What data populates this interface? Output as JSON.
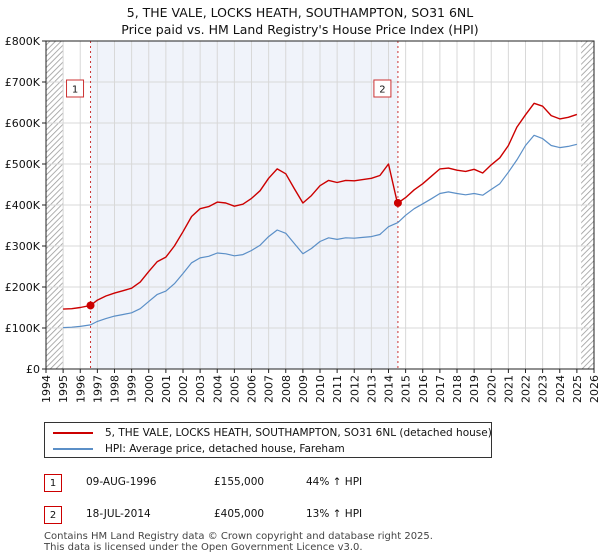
{
  "title_line1": "5, THE VALE, LOCKS HEATH, SOUTHAMPTON, SO31 6NL",
  "title_line2": "Price paid vs. HM Land Registry's House Price Index (HPI)",
  "colors": {
    "property_line": "#cc0000",
    "hpi_line": "#5b8fc7",
    "shade": "#dde5f5",
    "hatch": "#999999",
    "grid": "#d8d8d8",
    "marker": "#cc0000",
    "vline": "#cc3333"
  },
  "chart_data": {
    "type": "line",
    "xlim": [
      1994,
      2026
    ],
    "ylim": [
      0,
      800000
    ],
    "x_ticks": [
      "1994",
      "1995",
      "1996",
      "1997",
      "1998",
      "1999",
      "2000",
      "2001",
      "2002",
      "2003",
      "2004",
      "2005",
      "2006",
      "2007",
      "2008",
      "2009",
      "2010",
      "2011",
      "2012",
      "2013",
      "2014",
      "2015",
      "2016",
      "2017",
      "2018",
      "2019",
      "2020",
      "2021",
      "2022",
      "2023",
      "2024",
      "2025",
      "2026"
    ],
    "y_ticks": [
      {
        "value": 0,
        "label": "£0"
      },
      {
        "value": 100000,
        "label": "£100K"
      },
      {
        "value": 200000,
        "label": "£200K"
      },
      {
        "value": 300000,
        "label": "£300K"
      },
      {
        "value": 400000,
        "label": "£400K"
      },
      {
        "value": 500000,
        "label": "£500K"
      },
      {
        "value": 600000,
        "label": "£600K"
      },
      {
        "value": 700000,
        "label": "£700K"
      },
      {
        "value": 800000,
        "label": "£800K"
      }
    ],
    "data_range": [
      1995.0,
      2025.25
    ],
    "series": [
      {
        "name": "5, THE VALE, LOCKS HEATH, SOUTHAMPTON, SO31 6NL (detached house)",
        "color_key": "property_line",
        "x": [
          1995.0,
          1995.5,
          1996.0,
          1996.6,
          1997.0,
          1997.5,
          1998.0,
          1998.5,
          1999.0,
          1999.5,
          2000.0,
          2000.5,
          2001.0,
          2001.5,
          2002.0,
          2002.5,
          2003.0,
          2003.5,
          2004.0,
          2004.5,
          2005.0,
          2005.5,
          2006.0,
          2006.5,
          2007.0,
          2007.5,
          2008.0,
          2008.5,
          2009.0,
          2009.5,
          2010.0,
          2010.5,
          2011.0,
          2011.5,
          2012.0,
          2012.5,
          2013.0,
          2013.5,
          2014.0,
          2014.5,
          2014.55,
          2015.0,
          2015.5,
          2016.0,
          2016.5,
          2017.0,
          2017.5,
          2018.0,
          2018.5,
          2019.0,
          2019.5,
          2020.0,
          2020.5,
          2021.0,
          2021.5,
          2022.0,
          2022.5,
          2023.0,
          2023.5,
          2024.0,
          2024.5,
          2025.0
        ],
        "y": [
          146000,
          147000,
          150000,
          155000,
          168000,
          178000,
          185000,
          191000,
          197000,
          212000,
          238000,
          262000,
          273000,
          300000,
          335000,
          372000,
          391000,
          396000,
          407000,
          405000,
          397000,
          402000,
          416000,
          435000,
          465000,
          488000,
          476000,
          440000,
          405000,
          423000,
          447000,
          460000,
          455000,
          460000,
          459000,
          462000,
          465000,
          472000,
          500000,
          408000,
          405000,
          418000,
          437000,
          452000,
          470000,
          488000,
          490000,
          485000,
          482000,
          487000,
          478000,
          498000,
          515000,
          545000,
          590000,
          620000,
          648000,
          641000,
          618000,
          610000,
          614000,
          621000
        ]
      },
      {
        "name": "HPI: Average price, detached house, Fareham",
        "color_key": "hpi_line",
        "x": [
          1995.0,
          1995.5,
          1996.0,
          1996.6,
          1997.0,
          1997.5,
          1998.0,
          1998.5,
          1999.0,
          1999.5,
          2000.0,
          2000.5,
          2001.0,
          2001.5,
          2002.0,
          2002.5,
          2003.0,
          2003.5,
          2004.0,
          2004.5,
          2005.0,
          2005.5,
          2006.0,
          2006.5,
          2007.0,
          2007.5,
          2008.0,
          2008.5,
          2009.0,
          2009.5,
          2010.0,
          2010.5,
          2011.0,
          2011.5,
          2012.0,
          2012.5,
          2013.0,
          2013.5,
          2014.0,
          2014.55,
          2015.0,
          2015.5,
          2016.0,
          2016.5,
          2017.0,
          2017.5,
          2018.0,
          2018.5,
          2019.0,
          2019.5,
          2020.0,
          2020.5,
          2021.0,
          2021.5,
          2022.0,
          2022.5,
          2023.0,
          2023.5,
          2024.0,
          2024.5,
          2025.0
        ],
        "y": [
          101000,
          102000,
          104000,
          107600,
          116000,
          123000,
          129000,
          133000,
          137000,
          147000,
          165000,
          182000,
          190000,
          208000,
          233000,
          259000,
          271000,
          275000,
          283000,
          281000,
          276000,
          279000,
          289000,
          302000,
          323000,
          339000,
          331000,
          306000,
          281000,
          294000,
          311000,
          320000,
          316000,
          320000,
          319000,
          321000,
          323000,
          328000,
          347000,
          357000,
          375000,
          391000,
          403000,
          415000,
          428000,
          432000,
          428000,
          425000,
          428000,
          424000,
          438000,
          452000,
          480000,
          510000,
          545000,
          570000,
          562000,
          545000,
          540000,
          543000,
          548000
        ]
      }
    ],
    "sales": [
      {
        "id": "1",
        "x": 1996.6,
        "y": 155000,
        "date": "09-AUG-1996",
        "price": "£155,000",
        "hpi_change": "44% ↑ HPI"
      },
      {
        "id": "2",
        "x": 2014.55,
        "y": 405000,
        "date": "18-JUL-2014",
        "price": "£405,000",
        "hpi_change": "13% ↑ HPI"
      }
    ]
  },
  "legend": {
    "property_label": "5, THE VALE, LOCKS HEATH, SOUTHAMPTON, SO31 6NL (detached house)",
    "hpi_label": "HPI: Average price, detached house, Fareham"
  },
  "footer_line1": "Contains HM Land Registry data © Crown copyright and database right 2025.",
  "footer_line2": "This data is licensed under the Open Government Licence v3.0."
}
